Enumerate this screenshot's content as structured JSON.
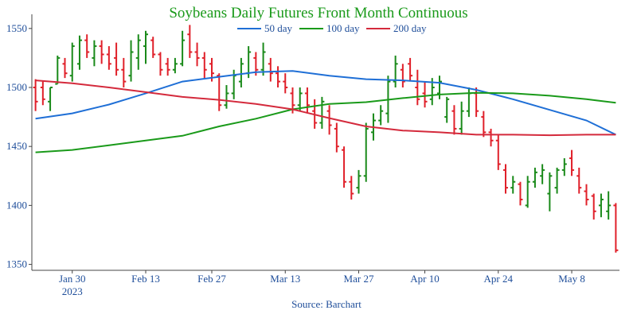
{
  "chart_data": {
    "type": "ohlc",
    "title": "Soybeans Daily Futures Front Month Continuous",
    "source": "Source: Barchart",
    "up_color": "#1a8a1a",
    "down_color": "#e0202a",
    "grid": false,
    "legend_position": "top",
    "x": [
      "2023-01-23",
      "2023-01-24",
      "2023-01-25",
      "2023-01-26",
      "2023-01-27",
      "2023-01-30",
      "2023-01-31",
      "2023-02-01",
      "2023-02-02",
      "2023-02-03",
      "2023-02-06",
      "2023-02-07",
      "2023-02-08",
      "2023-02-09",
      "2023-02-10",
      "2023-02-13",
      "2023-02-14",
      "2023-02-15",
      "2023-02-16",
      "2023-02-17",
      "2023-02-21",
      "2023-02-22",
      "2023-02-23",
      "2023-02-24",
      "2023-02-27",
      "2023-02-28",
      "2023-03-01",
      "2023-03-02",
      "2023-03-03",
      "2023-03-06",
      "2023-03-07",
      "2023-03-08",
      "2023-03-09",
      "2023-03-10",
      "2023-03-13",
      "2023-03-14",
      "2023-03-15",
      "2023-03-16",
      "2023-03-17",
      "2023-03-20",
      "2023-03-21",
      "2023-03-22",
      "2023-03-23",
      "2023-03-24",
      "2023-03-27",
      "2023-03-28",
      "2023-03-29",
      "2023-03-30",
      "2023-03-31",
      "2023-04-03",
      "2023-04-04",
      "2023-04-05",
      "2023-04-06",
      "2023-04-10",
      "2023-04-11",
      "2023-04-12",
      "2023-04-13",
      "2023-04-14",
      "2023-04-17",
      "2023-04-18",
      "2023-04-19",
      "2023-04-20",
      "2023-04-21",
      "2023-04-24",
      "2023-04-25",
      "2023-04-26",
      "2023-04-27",
      "2023-04-28",
      "2023-05-01",
      "2023-05-02",
      "2023-05-03",
      "2023-05-04",
      "2023-05-05",
      "2023-05-08",
      "2023-05-09",
      "2023-05-10",
      "2023-05-11",
      "2023-05-12",
      "2023-05-15",
      "2023-05-16"
    ],
    "open": [
      1500,
      1500,
      1488,
      1503,
      1520,
      1510,
      1520,
      1540,
      1525,
      1535,
      1528,
      1525,
      1515,
      1510,
      1525,
      1535,
      1540,
      1528,
      1520,
      1515,
      1520,
      1545,
      1530,
      1525,
      1520,
      1510,
      1485,
      1495,
      1505,
      1512,
      1525,
      1515,
      1520,
      1512,
      1505,
      1495,
      1485,
      1495,
      1480,
      1470,
      1480,
      1465,
      1447,
      1420,
      1415,
      1425,
      1462,
      1472,
      1478,
      1505,
      1515,
      1520,
      1500,
      1495,
      1490,
      1495,
      1475,
      1480,
      1465,
      1480,
      1495,
      1475,
      1462,
      1455,
      1430,
      1415,
      1418,
      1400,
      1420,
      1425,
      1410,
      1415,
      1430,
      1440,
      1425,
      1412,
      1408,
      1400,
      1395,
      1400
    ],
    "high": [
      1507,
      1505,
      1500,
      1527,
      1525,
      1538,
      1544,
      1545,
      1540,
      1540,
      1535,
      1538,
      1525,
      1540,
      1545,
      1548,
      1543,
      1530,
      1525,
      1525,
      1548,
      1553,
      1538,
      1530,
      1525,
      1512,
      1502,
      1515,
      1525,
      1535,
      1530,
      1538,
      1525,
      1518,
      1512,
      1500,
      1500,
      1500,
      1490,
      1492,
      1485,
      1470,
      1450,
      1425,
      1430,
      1470,
      1478,
      1485,
      1510,
      1527,
      1520,
      1525,
      1515,
      1505,
      1508,
      1510,
      1492,
      1485,
      1488,
      1500,
      1500,
      1480,
      1465,
      1460,
      1435,
      1425,
      1420,
      1425,
      1432,
      1435,
      1428,
      1432,
      1440,
      1447,
      1432,
      1418,
      1410,
      1410,
      1412,
      1402
    ],
    "low": [
      1480,
      1485,
      1480,
      1503,
      1508,
      1505,
      1515,
      1525,
      1518,
      1520,
      1515,
      1510,
      1500,
      1505,
      1515,
      1520,
      1525,
      1510,
      1510,
      1512,
      1518,
      1525,
      1518,
      1508,
      1505,
      1480,
      1482,
      1490,
      1500,
      1508,
      1510,
      1510,
      1505,
      1500,
      1495,
      1478,
      1480,
      1478,
      1465,
      1465,
      1460,
      1445,
      1415,
      1405,
      1410,
      1420,
      1455,
      1468,
      1470,
      1500,
      1500,
      1505,
      1485,
      1483,
      1485,
      1490,
      1470,
      1460,
      1460,
      1475,
      1475,
      1458,
      1450,
      1430,
      1410,
      1410,
      1400,
      1398,
      1415,
      1418,
      1395,
      1410,
      1425,
      1425,
      1410,
      1400,
      1388,
      1390,
      1388,
      1360
    ],
    "close": [
      1488,
      1490,
      1500,
      1525,
      1512,
      1535,
      1540,
      1530,
      1535,
      1528,
      1520,
      1515,
      1505,
      1530,
      1540,
      1545,
      1528,
      1515,
      1515,
      1520,
      1540,
      1530,
      1525,
      1515,
      1512,
      1485,
      1495,
      1510,
      1520,
      1530,
      1515,
      1530,
      1512,
      1505,
      1500,
      1485,
      1495,
      1485,
      1470,
      1488,
      1468,
      1450,
      1420,
      1410,
      1425,
      1465,
      1472,
      1480,
      1505,
      1520,
      1505,
      1510,
      1490,
      1488,
      1500,
      1505,
      1490,
      1465,
      1480,
      1495,
      1480,
      1462,
      1455,
      1435,
      1415,
      1420,
      1405,
      1420,
      1428,
      1430,
      1425,
      1430,
      1435,
      1430,
      1415,
      1405,
      1395,
      1405,
      1400,
      1362
    ],
    "series": [
      {
        "name": "50 day",
        "color": "#1f6fd6",
        "x": [
          "2023-01-23",
          "2023-01-30",
          "2023-02-06",
          "2023-02-13",
          "2023-02-21",
          "2023-02-28",
          "2023-03-07",
          "2023-03-14",
          "2023-03-21",
          "2023-03-28",
          "2023-04-04",
          "2023-04-12",
          "2023-04-19",
          "2023-04-26",
          "2023-05-03",
          "2023-05-10",
          "2023-05-16"
        ],
        "values": [
          1473.5,
          1478,
          1485.5,
          1495,
          1505,
          1509,
          1513,
          1514,
          1510,
          1507,
          1506,
          1504,
          1498,
          1490,
          1481,
          1472,
          1460
        ]
      },
      {
        "name": "100 day",
        "color": "#1a9a1a",
        "x": [
          "2023-01-23",
          "2023-01-30",
          "2023-02-06",
          "2023-02-13",
          "2023-02-21",
          "2023-02-28",
          "2023-03-07",
          "2023-03-14",
          "2023-03-21",
          "2023-03-28",
          "2023-04-04",
          "2023-04-12",
          "2023-04-19",
          "2023-04-26",
          "2023-05-03",
          "2023-05-10",
          "2023-05-16"
        ],
        "values": [
          1445,
          1447,
          1451,
          1455,
          1459,
          1467,
          1473.5,
          1481.5,
          1486,
          1487.5,
          1491,
          1494,
          1495.5,
          1495,
          1493,
          1490,
          1487
        ]
      },
      {
        "name": "200 day",
        "color": "#d42a3c",
        "x": [
          "2023-01-23",
          "2023-01-30",
          "2023-02-06",
          "2023-02-13",
          "2023-02-21",
          "2023-02-28",
          "2023-03-07",
          "2023-03-14",
          "2023-03-21",
          "2023-03-28",
          "2023-04-04",
          "2023-04-12",
          "2023-04-19",
          "2023-04-26",
          "2023-05-03",
          "2023-05-10",
          "2023-05-16"
        ],
        "values": [
          1506,
          1503.5,
          1500,
          1496,
          1492,
          1489.5,
          1486,
          1481.5,
          1474,
          1467,
          1463.5,
          1462,
          1460,
          1460,
          1459.5,
          1460,
          1460
        ]
      }
    ],
    "ylim": [
      1345,
      1562
    ],
    "yticks": [
      1350,
      1400,
      1450,
      1500,
      1550
    ],
    "xticks": [
      {
        "value": "2023-01-30",
        "label": "Jan 30\n2023"
      },
      {
        "value": "2023-02-13",
        "label": "Feb 13"
      },
      {
        "value": "2023-02-27",
        "label": "Feb 27"
      },
      {
        "value": "2023-03-13",
        "label": "Mar 13"
      },
      {
        "value": "2023-03-27",
        "label": "Mar 27"
      },
      {
        "value": "2023-04-10",
        "label": "Apr 10"
      },
      {
        "value": "2023-04-24",
        "label": "Apr 24"
      },
      {
        "value": "2023-05-08",
        "label": "May 8"
      }
    ]
  }
}
